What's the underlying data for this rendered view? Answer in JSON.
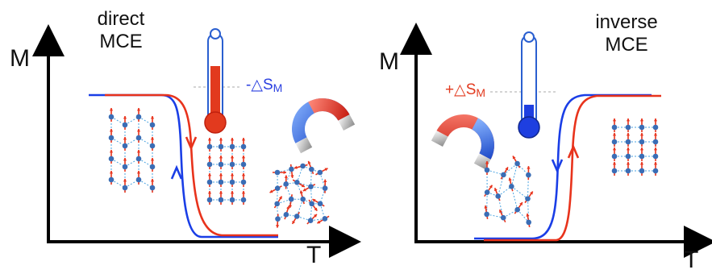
{
  "panels": [
    {
      "id": "direct",
      "axis_y_label": "M",
      "axis_x_label": "T",
      "title_line1": "direct",
      "title_line2": "MCE",
      "entropy_label": {
        "prefix": "-△S",
        "subscript": "M"
      },
      "entropy_color": "#2a3fe0",
      "thermometer_color": "#e23a1e"
    },
    {
      "id": "inverse",
      "axis_y_label": "M",
      "axis_x_label": "T",
      "title_line1": "inverse",
      "title_line2": "MCE",
      "entropy_label": {
        "prefix": "+△S",
        "subscript": "M"
      },
      "entropy_color": "#e23a1e",
      "thermometer_color": "#1e3fe0"
    }
  ],
  "colors": {
    "heating_curve": "#e8331c",
    "cooling_curve": "#1a3ee6",
    "spin_site": "#3a6db5",
    "spin_arrow": "#e8331c",
    "bond": "#4aa3e0"
  }
}
